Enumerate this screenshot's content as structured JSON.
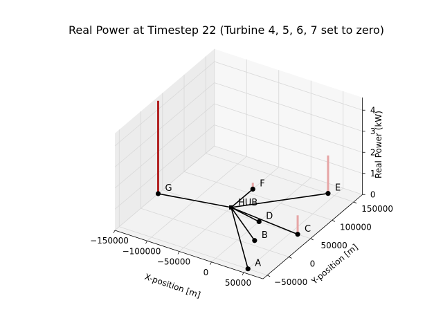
{
  "chart_data": {
    "type": "scatter",
    "title": "Real Power at Timestep 22 (Turbine 4, 5, 6, 7 set to zero)",
    "xlabel": "X-position [m]",
    "ylabel": "Y-position [m]",
    "zlabel": "Real Power (kW)",
    "xlim": [
      -150000,
      80000
    ],
    "ylim": [
      -60000,
      170000
    ],
    "zlim": [
      0,
      4.6
    ],
    "x_ticks": [
      {
        "value": -150000,
        "label": "−150000"
      },
      {
        "value": -100000,
        "label": "−100000"
      },
      {
        "value": -50000,
        "label": "−50000"
      },
      {
        "value": 0,
        "label": "0"
      },
      {
        "value": 50000,
        "label": "50000"
      }
    ],
    "y_ticks": [
      {
        "value": -50000,
        "label": "−50000"
      },
      {
        "value": 0,
        "label": "0"
      },
      {
        "value": 50000,
        "label": "50000"
      },
      {
        "value": 100000,
        "label": "100000"
      },
      {
        "value": 150000,
        "label": "150000"
      }
    ],
    "z_ticks": [
      {
        "value": 0,
        "label": "0"
      },
      {
        "value": 1,
        "label": "1"
      },
      {
        "value": 2,
        "label": "2"
      },
      {
        "value": 3,
        "label": "3"
      },
      {
        "value": 4,
        "label": "4"
      }
    ],
    "hub": {
      "label": "HUB",
      "x": -50000,
      "y": 60000
    },
    "turbines": [
      {
        "label": "A",
        "x": 50000,
        "y": -50000,
        "power": 0
      },
      {
        "label": "B",
        "x": 20000,
        "y": 10000,
        "power": 0
      },
      {
        "label": "C",
        "x": 60000,
        "y": 50000,
        "power": 0.9
      },
      {
        "label": "D",
        "x": 0,
        "y": 50000,
        "power": 0
      },
      {
        "label": "E",
        "x": 40000,
        "y": 150000,
        "power": 1.8
      },
      {
        "label": "F",
        "x": -50000,
        "y": 110000,
        "power": 0.3
      },
      {
        "label": "G",
        "x": -150000,
        "y": 40000,
        "power": 4.4
      }
    ]
  },
  "colors": {
    "cable": "#000000",
    "power_bar": "#b22222",
    "power_bar_light": "#e6a5a5",
    "grid": "#d8d8d8",
    "pane": "#f2f2f2"
  }
}
